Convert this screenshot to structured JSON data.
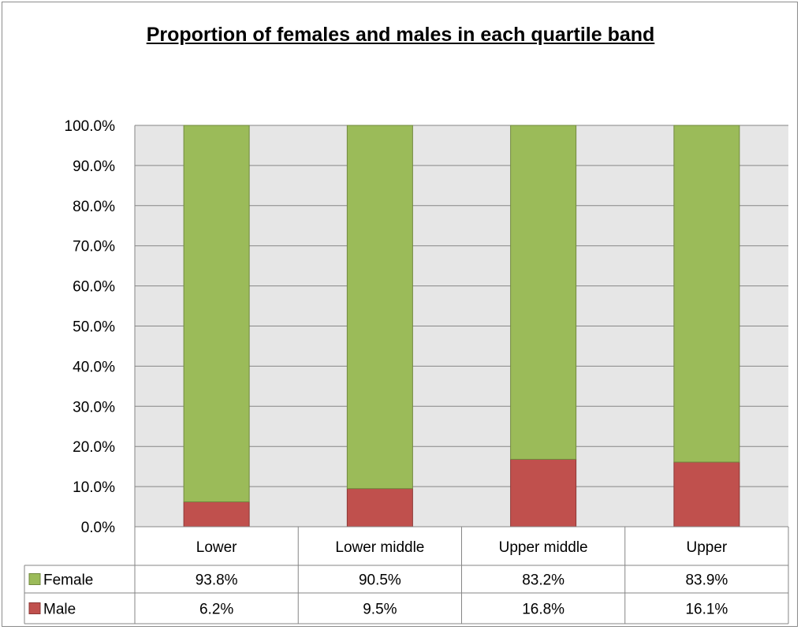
{
  "chart_data": {
    "type": "bar",
    "stacked": true,
    "title": "Proportion of females and males in each quartile band",
    "categories": [
      "Lower",
      "Lower middle",
      "Upper middle",
      "Upper"
    ],
    "series": [
      {
        "name": "Female",
        "color": "#9bbb59",
        "values": [
          93.8,
          90.5,
          83.2,
          83.9
        ],
        "labels": [
          "93.8%",
          "90.5%",
          "83.2%",
          "83.9%"
        ]
      },
      {
        "name": "Male",
        "color": "#c0504d",
        "values": [
          6.2,
          9.5,
          16.8,
          16.1
        ],
        "labels": [
          "6.2%",
          "9.5%",
          "16.8%",
          "16.1%"
        ]
      }
    ],
    "y_ticks": [
      "0.0%",
      "10.0%",
      "20.0%",
      "30.0%",
      "40.0%",
      "50.0%",
      "60.0%",
      "70.0%",
      "80.0%",
      "90.0%",
      "100.0%"
    ],
    "ylim": [
      0,
      100
    ],
    "grid": true,
    "plot_background": "#e6e6e6",
    "legend": "data-table"
  }
}
